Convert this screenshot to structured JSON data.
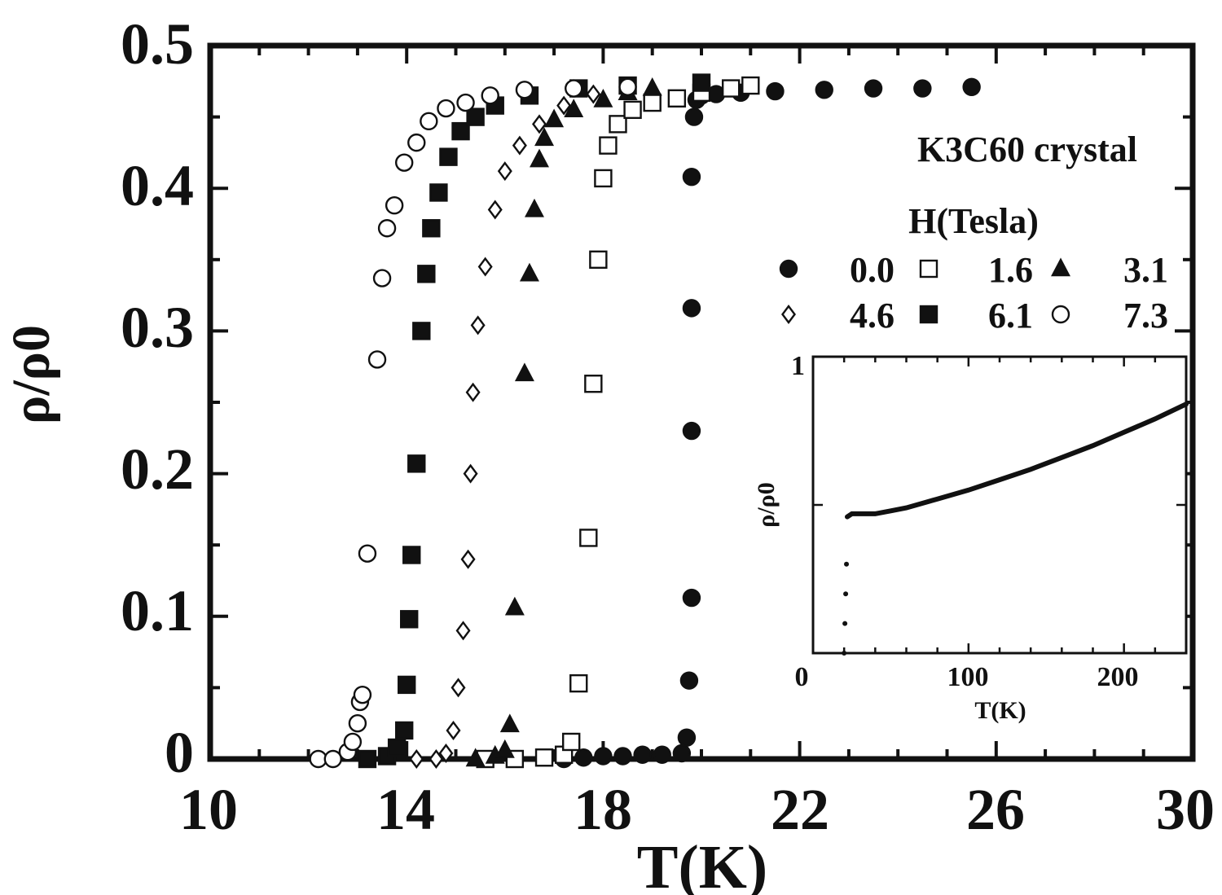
{
  "chart_data": {
    "type": "scatter",
    "title": "K3C60 crystal",
    "xlabel": "T(K)",
    "ylabel": "ρ/ρ0",
    "xlim": [
      10,
      30
    ],
    "ylim": [
      0,
      0.5
    ],
    "x_ticks": [
      "10",
      "14",
      "18",
      "22",
      "26",
      "30"
    ],
    "y_ticks": [
      "0",
      "0.1",
      "0.2",
      "0.3",
      "0.4",
      "0.5"
    ],
    "legend_title": "H(Tesla)",
    "legend_location": "right",
    "series": [
      {
        "name": "0.0",
        "marker": "filled-circle",
        "x": [
          17.2,
          17.6,
          18.0,
          18.4,
          18.8,
          19.2,
          19.6,
          19.7,
          19.75,
          19.8,
          19.8,
          19.8,
          19.8,
          19.85,
          19.9,
          20.0,
          20.3,
          20.8,
          21.5,
          22.5,
          23.5,
          24.5,
          25.5
        ],
        "y": [
          0.0,
          0.001,
          0.002,
          0.002,
          0.003,
          0.003,
          0.004,
          0.015,
          0.055,
          0.113,
          0.23,
          0.316,
          0.408,
          0.45,
          0.462,
          0.465,
          0.466,
          0.467,
          0.468,
          0.469,
          0.47,
          0.47,
          0.471
        ]
      },
      {
        "name": "1.6",
        "marker": "open-square",
        "x": [
          15.6,
          16.2,
          16.8,
          17.2,
          17.35,
          17.5,
          17.7,
          17.8,
          17.9,
          18.0,
          18.1,
          18.3,
          18.6,
          19.0,
          19.5,
          20.0,
          20.6,
          21.0
        ],
        "y": [
          0.0,
          0.0,
          0.001,
          0.003,
          0.012,
          0.053,
          0.155,
          0.263,
          0.35,
          0.407,
          0.43,
          0.445,
          0.455,
          0.46,
          0.463,
          0.467,
          0.47,
          0.472
        ]
      },
      {
        "name": "3.1",
        "marker": "filled-triangle",
        "x": [
          15.4,
          15.8,
          16.0,
          16.1,
          16.2,
          16.4,
          16.5,
          16.6,
          16.7,
          16.8,
          17.0,
          17.4,
          18.0,
          18.5,
          19.0
        ],
        "y": [
          0.0,
          0.002,
          0.006,
          0.024,
          0.106,
          0.27,
          0.34,
          0.385,
          0.42,
          0.435,
          0.448,
          0.455,
          0.462,
          0.467,
          0.47
        ]
      },
      {
        "name": "4.6",
        "marker": "open-diamond",
        "x": [
          14.2,
          14.6,
          14.8,
          14.95,
          15.05,
          15.15,
          15.25,
          15.3,
          15.35,
          15.45,
          15.6,
          15.8,
          16.0,
          16.3,
          16.7,
          17.2,
          17.8
        ],
        "y": [
          0.0,
          0.0,
          0.004,
          0.02,
          0.05,
          0.09,
          0.14,
          0.2,
          0.257,
          0.304,
          0.345,
          0.385,
          0.412,
          0.43,
          0.445,
          0.458,
          0.466
        ]
      },
      {
        "name": "6.1",
        "marker": "filled-square",
        "x": [
          13.2,
          13.6,
          13.8,
          13.95,
          14.0,
          14.05,
          14.1,
          14.2,
          14.3,
          14.4,
          14.5,
          14.65,
          14.85,
          15.1,
          15.4,
          15.8,
          16.5,
          17.5,
          18.5,
          20.0
        ],
        "y": [
          0.0,
          0.002,
          0.008,
          0.02,
          0.052,
          0.098,
          0.143,
          0.207,
          0.3,
          0.34,
          0.372,
          0.397,
          0.422,
          0.44,
          0.45,
          0.458,
          0.465,
          0.47,
          0.472,
          0.474
        ]
      },
      {
        "name": "7.3",
        "marker": "open-circle",
        "x": [
          12.2,
          12.5,
          12.8,
          12.9,
          13.0,
          13.05,
          13.1,
          13.2,
          13.4,
          13.5,
          13.6,
          13.75,
          13.95,
          14.2,
          14.45,
          14.8,
          15.2,
          15.7,
          16.4,
          17.4,
          18.5
        ],
        "y": [
          0.0,
          0.0,
          0.005,
          0.012,
          0.025,
          0.04,
          0.045,
          0.144,
          0.28,
          0.337,
          0.372,
          0.388,
          0.418,
          0.432,
          0.447,
          0.456,
          0.46,
          0.465,
          0.469,
          0.47,
          0.471
        ]
      }
    ],
    "inset": {
      "xlabel": "T(K)",
      "ylabel": "ρ/ρ0",
      "xlim": [
        0,
        240
      ],
      "ylim": [
        0,
        1
      ],
      "x_ticks": [
        "0",
        "100",
        "200"
      ],
      "y_ticks": [
        "1"
      ],
      "series": [
        {
          "name": "",
          "x": [
            20,
            20.5,
            21,
            21.5,
            22,
            25,
            30,
            40,
            50,
            60,
            80,
            100,
            120,
            140,
            160,
            180,
            200,
            220,
            240
          ],
          "y": [
            0.0,
            0.1,
            0.2,
            0.3,
            0.46,
            0.47,
            0.47,
            0.47,
            0.48,
            0.49,
            0.52,
            0.55,
            0.585,
            0.62,
            0.66,
            0.7,
            0.745,
            0.79,
            0.84
          ]
        }
      ]
    }
  }
}
